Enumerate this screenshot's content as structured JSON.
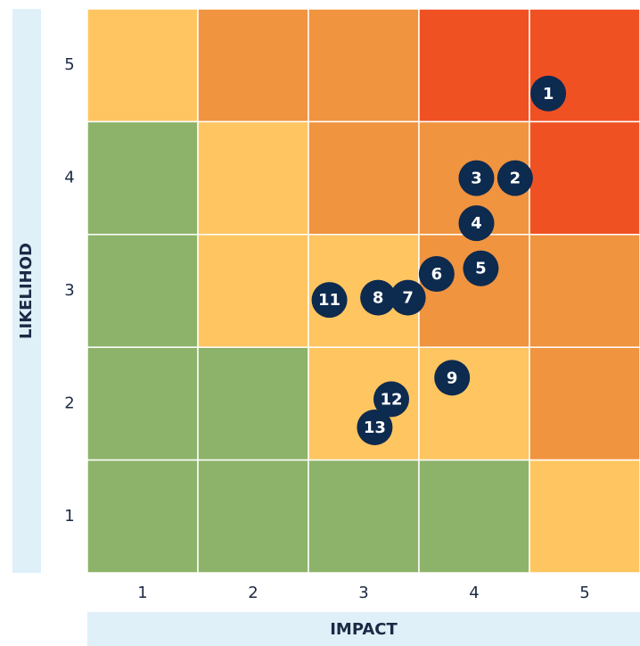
{
  "chart_data": {
    "type": "risk_matrix",
    "xlabel": "IMPACT",
    "ylabel": "LIKELIHOD",
    "xlim": [
      0.5,
      5.5
    ],
    "ylim": [
      0.5,
      5.5
    ],
    "xticks": [
      1,
      2,
      3,
      4,
      5
    ],
    "yticks": [
      1,
      2,
      3,
      4,
      5
    ],
    "cell_colors": [
      [
        "#fec560",
        "#f0943f",
        "#f0943f",
        "#f05123",
        "#f05123"
      ],
      [
        "#8db36a",
        "#fec560",
        "#f0943f",
        "#f0943f",
        "#f05123"
      ],
      [
        "#8db36a",
        "#fec560",
        "#fec560",
        "#f0943f",
        "#f0943f"
      ],
      [
        "#8db36a",
        "#8db36a",
        "#fec560",
        "#fec560",
        "#f0943f"
      ],
      [
        "#8db36a",
        "#8db36a",
        "#8db36a",
        "#8db36a",
        "#fec560"
      ]
    ],
    "point_color": "#0d2a4f",
    "points": [
      {
        "label": "1",
        "x": 4.67,
        "y": 4.75
      },
      {
        "label": "2",
        "x": 4.37,
        "y": 4.0
      },
      {
        "label": "3",
        "x": 4.02,
        "y": 4.0
      },
      {
        "label": "4",
        "x": 4.02,
        "y": 3.6
      },
      {
        "label": "5",
        "x": 4.06,
        "y": 3.2
      },
      {
        "label": "6",
        "x": 3.66,
        "y": 3.15
      },
      {
        "label": "7",
        "x": 3.4,
        "y": 2.94
      },
      {
        "label": "8",
        "x": 3.13,
        "y": 2.94
      },
      {
        "label": "9",
        "x": 3.8,
        "y": 2.23
      },
      {
        "label": "11",
        "x": 2.69,
        "y": 2.92
      },
      {
        "label": "12",
        "x": 3.25,
        "y": 2.04
      },
      {
        "label": "13",
        "x": 3.1,
        "y": 1.79
      }
    ]
  }
}
